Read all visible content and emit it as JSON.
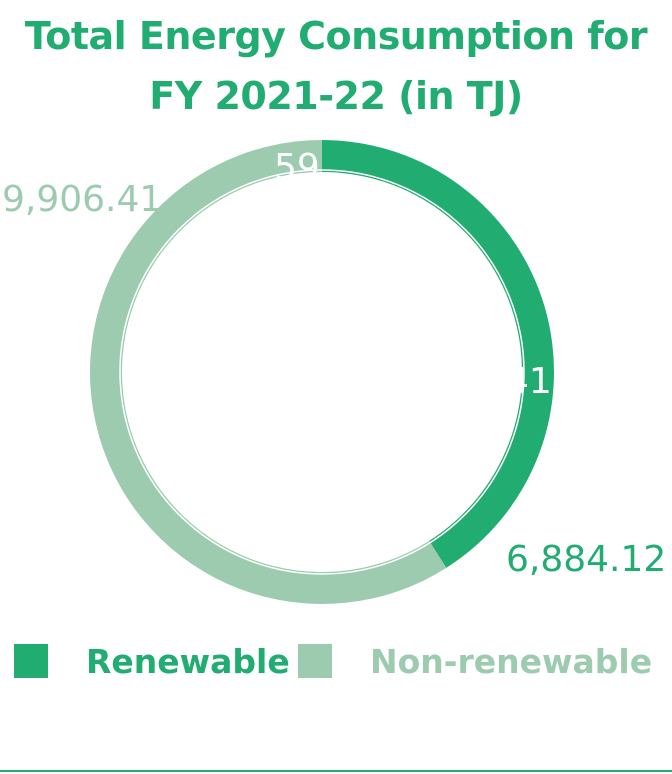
{
  "chart_data": {
    "type": "pie",
    "title": "Total Energy Consumption for FY 2021-22 (in TJ)",
    "title_lines": [
      "Total Energy Consumption for",
      "FY 2021-22 (in TJ)"
    ],
    "variant": "donut",
    "categories": [
      "Renewable",
      "Non-renewable"
    ],
    "values": [
      6884.12,
      9906.41
    ],
    "percentages": [
      41,
      59
    ],
    "value_labels": [
      "6,884.12",
      "9,906.41"
    ],
    "percent_labels": [
      "41",
      "59"
    ],
    "colors": {
      "Renewable": "#21ac72",
      "Non-renewable": "#9dcbb0"
    },
    "legend": "bottom",
    "start_angle_deg": 0,
    "direction": "clockwise"
  },
  "legend": {
    "items": [
      {
        "label": "Renewable",
        "color": "#21ac72"
      },
      {
        "label": "Non-renewable",
        "color": "#9dcbb0"
      }
    ]
  }
}
